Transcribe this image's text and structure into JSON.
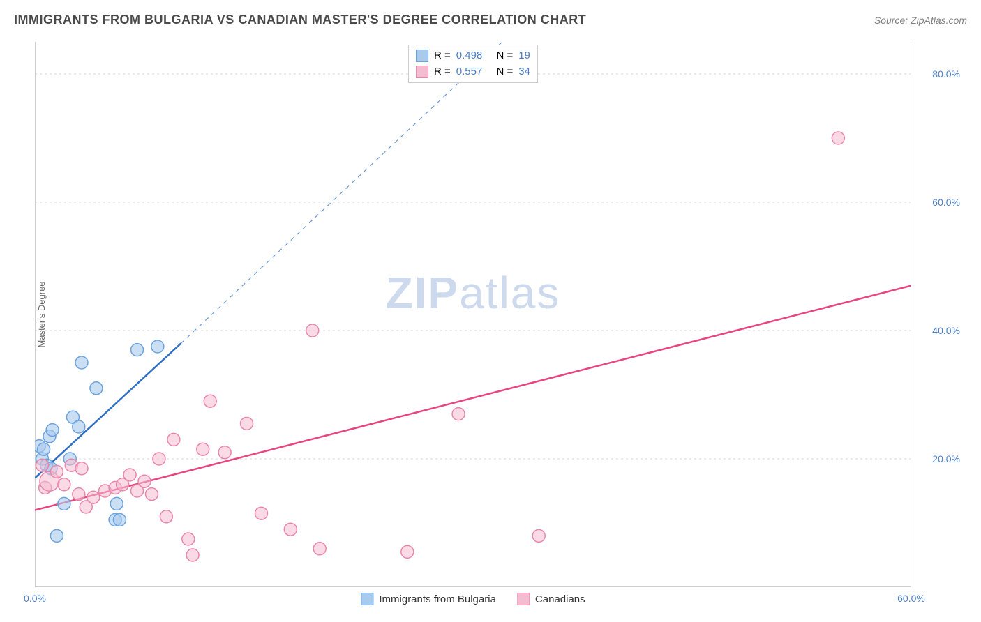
{
  "title": "IMMIGRANTS FROM BULGARIA VS CANADIAN MASTER'S DEGREE CORRELATION CHART",
  "source_label": "Source: ZipAtlas.com",
  "watermark": {
    "bold": "ZIP",
    "rest": "atlas"
  },
  "chart": {
    "type": "scatter",
    "ylabel": "Master's Degree",
    "background_color": "#ffffff",
    "grid_color": "#d8d8d8",
    "axis_color": "#bfbfbf",
    "tick_color": "#bfbfbf",
    "label_color": "#4a7ec7",
    "xlim": [
      0,
      60
    ],
    "ylim": [
      0,
      85
    ],
    "xticks": [
      0,
      10,
      20,
      30,
      40,
      50,
      60
    ],
    "xtick_labels": [
      "0.0%",
      "",
      "",
      "",
      "",
      "",
      "60.0%"
    ],
    "yticks": [
      20,
      40,
      60,
      80
    ],
    "ytick_labels": [
      "20.0%",
      "40.0%",
      "60.0%",
      "80.0%"
    ],
    "series": [
      {
        "name": "Immigrants from Bulgaria",
        "color_fill": "#a8caed",
        "color_stroke": "#6ba3de",
        "marker_radius": 9,
        "fill_opacity": 0.6,
        "r_value": "0.498",
        "n_value": "19",
        "trend_line": {
          "color": "#2f6fc4",
          "width": 2.5,
          "x1": 0,
          "y1": 17,
          "x2": 10,
          "y2": 38,
          "dash_x2": 32,
          "dash_y2": 85
        },
        "points": [
          {
            "x": 0.3,
            "y": 22
          },
          {
            "x": 0.5,
            "y": 20
          },
          {
            "x": 0.6,
            "y": 21.5
          },
          {
            "x": 0.8,
            "y": 19
          },
          {
            "x": 1.0,
            "y": 23.5
          },
          {
            "x": 1.1,
            "y": 18.5
          },
          {
            "x": 1.2,
            "y": 24.5
          },
          {
            "x": 1.5,
            "y": 8
          },
          {
            "x": 2.0,
            "y": 13
          },
          {
            "x": 2.4,
            "y": 20
          },
          {
            "x": 2.6,
            "y": 26.5
          },
          {
            "x": 3.0,
            "y": 25
          },
          {
            "x": 3.2,
            "y": 35
          },
          {
            "x": 4.2,
            "y": 31
          },
          {
            "x": 5.5,
            "y": 10.5
          },
          {
            "x": 5.6,
            "y": 13
          },
          {
            "x": 5.8,
            "y": 10.5
          },
          {
            "x": 7.0,
            "y": 37
          },
          {
            "x": 8.4,
            "y": 37.5
          }
        ]
      },
      {
        "name": "Canadians",
        "color_fill": "#f4bcd0",
        "color_stroke": "#e986aa",
        "marker_radius": 9,
        "fill_opacity": 0.55,
        "r_value": "0.557",
        "n_value": "34",
        "trend_line": {
          "color": "#e8447d",
          "width": 2.5,
          "x1": 0,
          "y1": 12,
          "x2": 60,
          "y2": 47
        },
        "points": [
          {
            "x": 0.5,
            "y": 19
          },
          {
            "x": 0.7,
            "y": 15.5
          },
          {
            "x": 1.0,
            "y": 16.5,
            "r": 14
          },
          {
            "x": 1.5,
            "y": 18
          },
          {
            "x": 2.0,
            "y": 16
          },
          {
            "x": 2.5,
            "y": 19
          },
          {
            "x": 3.0,
            "y": 14.5
          },
          {
            "x": 3.2,
            "y": 18.5
          },
          {
            "x": 3.5,
            "y": 12.5
          },
          {
            "x": 4.0,
            "y": 14
          },
          {
            "x": 4.8,
            "y": 15
          },
          {
            "x": 5.5,
            "y": 15.5
          },
          {
            "x": 6.0,
            "y": 16
          },
          {
            "x": 6.5,
            "y": 17.5
          },
          {
            "x": 7.0,
            "y": 15
          },
          {
            "x": 7.5,
            "y": 16.5
          },
          {
            "x": 8.0,
            "y": 14.5
          },
          {
            "x": 8.5,
            "y": 20
          },
          {
            "x": 9.0,
            "y": 11
          },
          {
            "x": 9.5,
            "y": 23
          },
          {
            "x": 10.5,
            "y": 7.5
          },
          {
            "x": 10.8,
            "y": 5
          },
          {
            "x": 11.5,
            "y": 21.5
          },
          {
            "x": 12.0,
            "y": 29
          },
          {
            "x": 13.0,
            "y": 21
          },
          {
            "x": 14.5,
            "y": 25.5
          },
          {
            "x": 15.5,
            "y": 11.5
          },
          {
            "x": 17.5,
            "y": 9
          },
          {
            "x": 19.0,
            "y": 40
          },
          {
            "x": 19.5,
            "y": 6
          },
          {
            "x": 25.5,
            "y": 5.5
          },
          {
            "x": 29.0,
            "y": 27
          },
          {
            "x": 34.5,
            "y": 8
          },
          {
            "x": 55.0,
            "y": 70
          }
        ]
      }
    ],
    "legend_top": {
      "border_color": "#cccccc",
      "r_label": "R =",
      "n_label": "N ="
    },
    "legend_bottom_labels": [
      "Immigrants from Bulgaria",
      "Canadians"
    ]
  }
}
